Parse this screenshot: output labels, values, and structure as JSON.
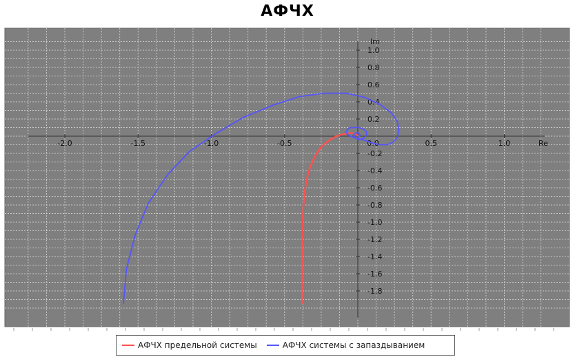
{
  "chart_data": {
    "type": "line",
    "title": "АФЧХ",
    "xlabel": "Re",
    "ylabel": "Im",
    "xlim": [
      -2.25,
      1.25
    ],
    "ylim": [
      -2.05,
      1.1
    ],
    "grid": true,
    "x_ticks": [
      {
        "value": -2.0,
        "label": "-2.0"
      },
      {
        "value": -1.5,
        "label": "-1.5"
      },
      {
        "value": -1.0,
        "label": "-1.0"
      },
      {
        "value": -0.5,
        "label": "-0.5"
      },
      {
        "value": 0.0,
        "label": "0.0"
      },
      {
        "value": 0.5,
        "label": "0.5"
      },
      {
        "value": 1.0,
        "label": "1.0"
      }
    ],
    "y_ticks": [
      {
        "value": 1.0,
        "label": "1.0"
      },
      {
        "value": 0.8,
        "label": "0.8"
      },
      {
        "value": 0.6,
        "label": "0.6"
      },
      {
        "value": 0.4,
        "label": "0.4"
      },
      {
        "value": 0.2,
        "label": "0.2"
      },
      {
        "value": -0.2,
        "label": "-0.2"
      },
      {
        "value": -0.4,
        "label": "-0.4"
      },
      {
        "value": -0.6,
        "label": "-0.6"
      },
      {
        "value": -0.8,
        "label": "-0.8"
      },
      {
        "value": -1.0,
        "label": "-1.0"
      },
      {
        "value": -1.2,
        "label": "-1.2"
      },
      {
        "value": -1.4,
        "label": "-1.4"
      },
      {
        "value": -1.6,
        "label": "-1.6"
      },
      {
        "value": -1.8,
        "label": "-1.8"
      }
    ],
    "legend_position": "bottom",
    "series": [
      {
        "name": "АФЧХ предельной системы",
        "color": "#ff5050",
        "x": [
          -0.38,
          -0.38,
          -0.379,
          -0.377,
          -0.373,
          -0.366,
          -0.356,
          -0.343,
          -0.327,
          -0.306,
          -0.282,
          -0.256,
          -0.228,
          -0.198,
          -0.168,
          -0.138,
          -0.108,
          -0.079,
          -0.052,
          -0.03,
          -0.015,
          -0.005,
          0.0
        ],
        "y": [
          -1.95,
          -1.6,
          -1.3,
          -1.05,
          -0.85,
          -0.7,
          -0.57,
          -0.46,
          -0.37,
          -0.28,
          -0.2,
          -0.14,
          -0.09,
          -0.05,
          -0.02,
          0.005,
          0.02,
          0.03,
          0.035,
          0.033,
          0.025,
          0.013,
          0.0
        ]
      },
      {
        "name": "АФЧХ системы с запаздыванием",
        "color": "#5555ff",
        "x": [
          -1.6,
          -1.58,
          -1.52,
          -1.43,
          -1.3,
          -1.15,
          -0.97,
          -0.78,
          -0.58,
          -0.4,
          -0.23,
          -0.08,
          0.05,
          0.15,
          0.23,
          0.27,
          0.28,
          0.27,
          0.24,
          0.2,
          0.15,
          0.1,
          0.05,
          0.01,
          -0.02,
          -0.05,
          -0.07,
          -0.08,
          -0.07,
          -0.05,
          -0.02,
          0.01,
          0.04,
          0.06,
          0.06,
          0.05,
          0.03,
          0.01,
          -0.01,
          -0.02,
          -0.03,
          -0.02,
          -0.01,
          0.0,
          0.01,
          0.015,
          0.01,
          0.0
        ],
        "y": [
          -1.95,
          -1.55,
          -1.15,
          -0.78,
          -0.45,
          -0.18,
          0.03,
          0.22,
          0.36,
          0.46,
          0.5,
          0.5,
          0.45,
          0.37,
          0.27,
          0.17,
          0.07,
          -0.01,
          -0.07,
          -0.1,
          -0.1,
          -0.08,
          -0.05,
          -0.03,
          -0.02,
          0.0,
          0.02,
          0.05,
          0.08,
          0.1,
          0.1,
          0.1,
          0.08,
          0.05,
          0.02,
          -0.01,
          -0.03,
          -0.04,
          -0.03,
          -0.01,
          0.01,
          0.03,
          0.04,
          0.04,
          0.03,
          0.01,
          0.0,
          0.0
        ]
      }
    ]
  }
}
